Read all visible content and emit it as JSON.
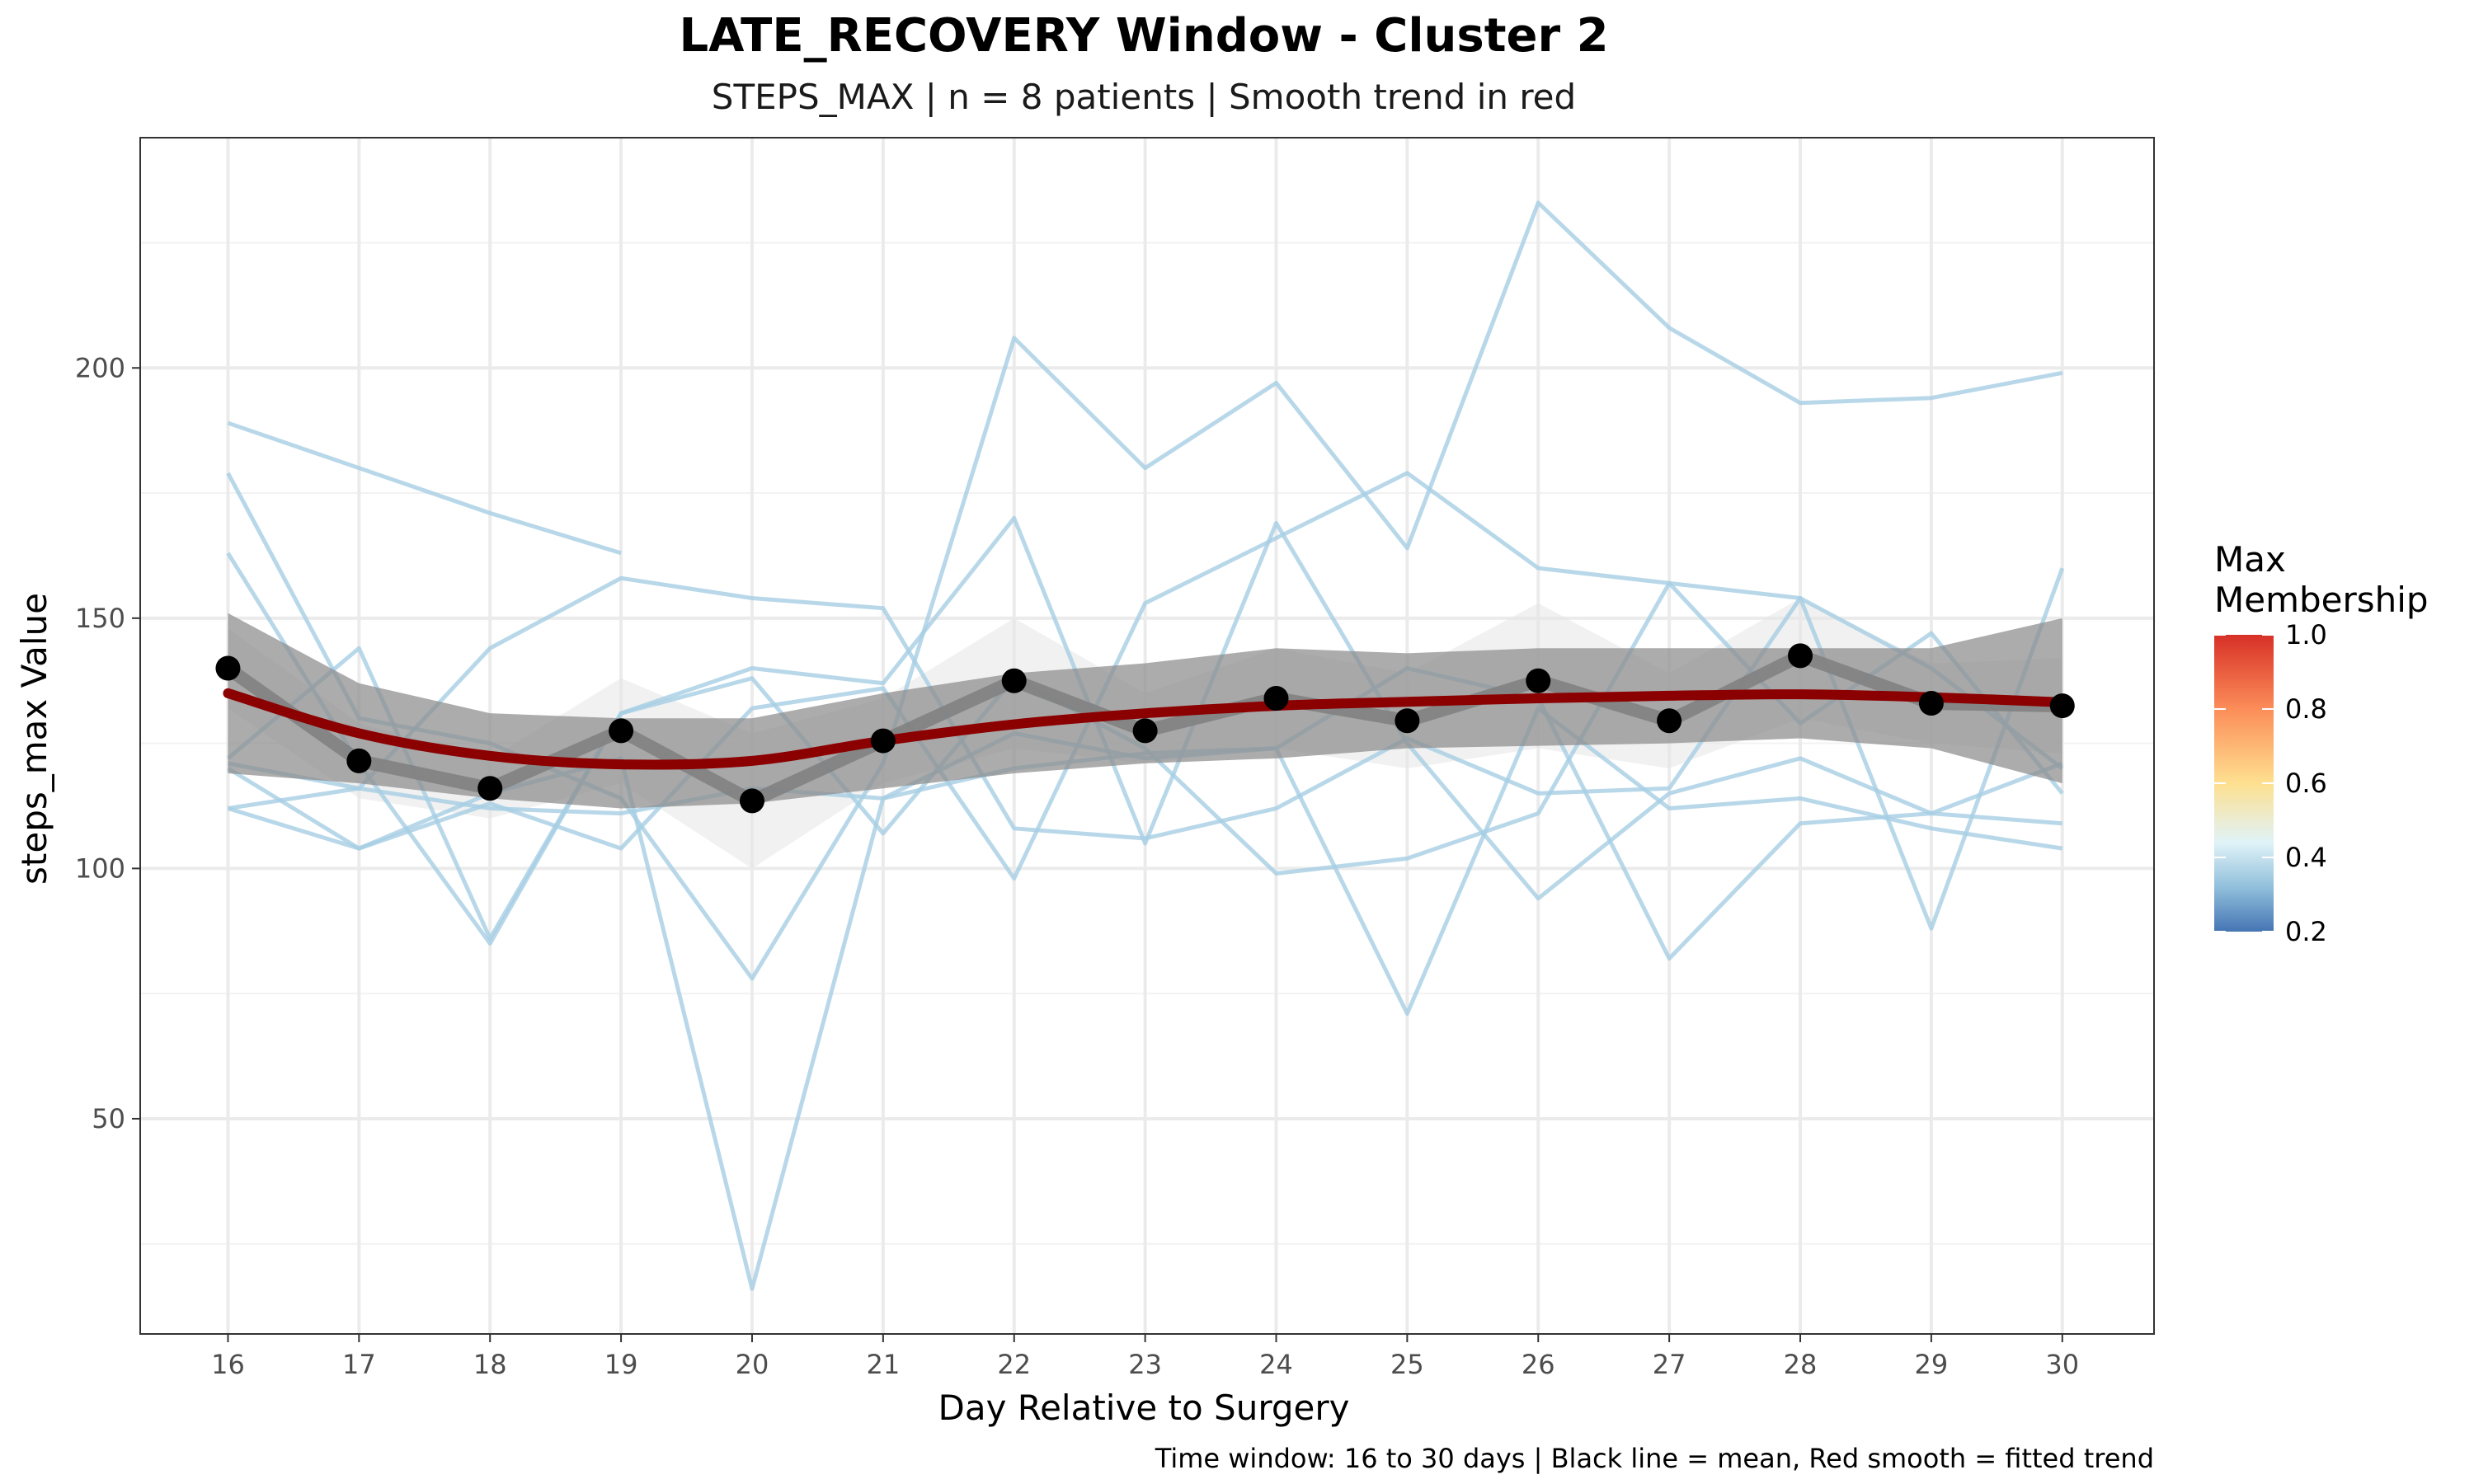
{
  "chart_data": {
    "type": "line",
    "title": "LATE_RECOVERY Window - Cluster 2",
    "subtitle": "STEPS_MAX | n = 8 patients | Smooth trend in red",
    "xlabel": "Day Relative to Surgery",
    "ylabel": "steps_max Value",
    "caption": "Time window: 16 to 30 days | Black line = mean, Red smooth = fitted trend",
    "x": [
      16,
      17,
      18,
      19,
      20,
      21,
      22,
      23,
      24,
      25,
      26,
      27,
      28,
      29,
      30
    ],
    "xlim": [
      15.33,
      30.7
    ],
    "ylim": [
      7,
      246
    ],
    "y_ticks": [
      50,
      100,
      150,
      200
    ],
    "grid": true,
    "patients": [
      {
        "values": [
          189,
          180,
          171,
          163,
          null,
          null,
          null,
          null,
          null,
          null,
          null,
          null,
          null,
          null,
          null
        ]
      },
      {
        "values": [
          179,
          130,
          125,
          114,
          78,
          121,
          206,
          180,
          197,
          164,
          233,
          208,
          193,
          194,
          199
        ]
      },
      {
        "values": [
          163,
          121,
          85,
          131,
          140,
          137,
          170,
          105,
          169,
          125,
          94,
          115,
          122,
          111,
          121
        ]
      },
      {
        "values": [
          122,
          144,
          86,
          131,
          138,
          107,
          138,
          124,
          99,
          102,
          111,
          157,
          129,
          147,
          115
        ]
      },
      {
        "values": [
          121,
          116,
          144,
          158,
          154,
          152,
          108,
          106,
          112,
          126,
          115,
          116,
          154,
          88,
          160
        ]
      },
      {
        "values": [
          120,
          104,
          113,
          104,
          132,
          136,
          98,
          153,
          166,
          179,
          160,
          157,
          154,
          140,
          120
        ]
      },
      {
        "values": [
          112,
          116,
          112,
          111,
          116,
          114,
          120,
          123,
          124,
          140,
          134,
          82,
          109,
          111,
          109
        ]
      },
      {
        "values": [
          112,
          104,
          115,
          122,
          16,
          114,
          127,
          122,
          124,
          71,
          132,
          112,
          114,
          108,
          104
        ]
      }
    ],
    "mean": [
      140,
      121.5,
      116,
      127.5,
      113.5,
      125.5,
      137.5,
      127.5,
      134,
      129.5,
      137.5,
      129.5,
      142.5,
      133,
      132.5
    ],
    "mean_band_lower": [
      132,
      114,
      110,
      117,
      100,
      117,
      124,
      121,
      124,
      120,
      124,
      120,
      130,
      125,
      123
    ],
    "mean_band_upper": [
      148,
      129,
      122,
      138,
      127,
      134,
      150,
      135,
      144,
      139,
      153,
      139,
      154,
      141,
      142
    ],
    "smooth": [
      135,
      127,
      122.5,
      120.8,
      121.5,
      125.5,
      128.8,
      131,
      132.5,
      133.3,
      134,
      134.5,
      134.8,
      134.2,
      133.2
    ],
    "smooth_ci_lower": [
      119,
      117,
      114,
      112,
      113,
      116,
      119,
      121,
      122,
      124,
      124.5,
      125,
      126,
      124,
      117
    ],
    "smooth_ci_upper": [
      151,
      137,
      131,
      130,
      130,
      135,
      139,
      141,
      144,
      143,
      144,
      144,
      144,
      144,
      150
    ],
    "colors": {
      "patient": "#a6cee3",
      "mean_line": "#7f7f7f",
      "mean_point": "#000000",
      "smooth": "#8b0000",
      "smooth_band": "#8c8c8c",
      "mean_band": "#e6e6e6"
    },
    "legend": {
      "title_line1": "Max",
      "title_line2": "Membership",
      "position": "right",
      "range": [
        0.2,
        1.0
      ],
      "ticks": [
        "1.0",
        "0.8",
        "0.6",
        "0.4",
        "0.2"
      ],
      "colors": [
        "#d73027",
        "#fc8d59",
        "#fee090",
        "#e0f3f8",
        "#91bfdb",
        "#4575b4"
      ]
    }
  }
}
